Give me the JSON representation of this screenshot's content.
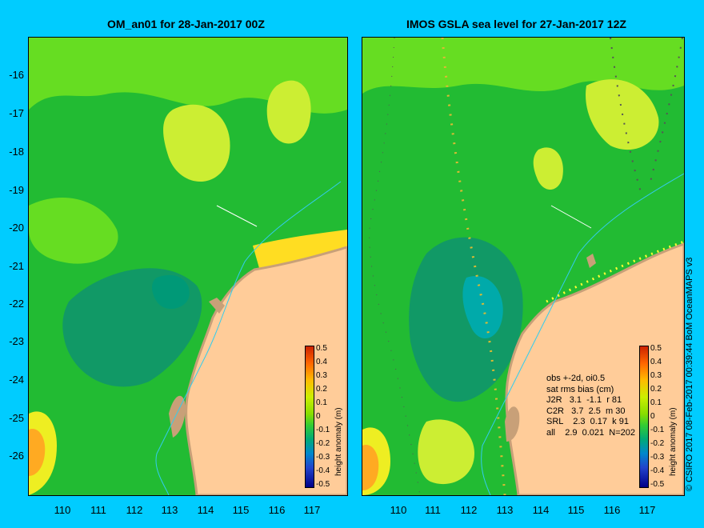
{
  "left_panel": {
    "title": "OM_an01 for 28-Jan-2017 00Z"
  },
  "right_panel": {
    "title": "IMOS GSLA sea level  for 27-Jan-2017 12Z"
  },
  "y_axis_labels": [
    "-16",
    "-17",
    "-18",
    "-19",
    "-20",
    "-21",
    "-22",
    "-23",
    "-24",
    "-25",
    "-26"
  ],
  "x_axis_labels": [
    "110",
    "111",
    "112",
    "113",
    "114",
    "115",
    "116",
    "117"
  ],
  "colorbar": {
    "title": "height anomaly (m)",
    "ticks": [
      "0.5",
      "0.4",
      "0.3",
      "0.2",
      "0.1",
      "0",
      "-0.1",
      "-0.2",
      "-0.3",
      "-0.4",
      "-0.5"
    ]
  },
  "stats": {
    "line1": "obs +-2d, oi0.5",
    "line2": "sat rms bias (cm)",
    "line3": "J2R   3.1  -1.1  r 81",
    "line4": "C2R   3.7  2.5  m 30",
    "line5": "SRL    2.3  0.17  k 91",
    "line6": "all    2.9  0.021  N=202"
  },
  "credit": "© CSIRO 2017   08-Feb-2017 00:39:44 BoM OceanMAPS v3",
  "colors": {
    "background": "#00ccff",
    "land": "#ffcc99",
    "coast": "#c8a078",
    "high": "#ccff33",
    "mid": "#33cc33",
    "low": "#00aa88"
  }
}
